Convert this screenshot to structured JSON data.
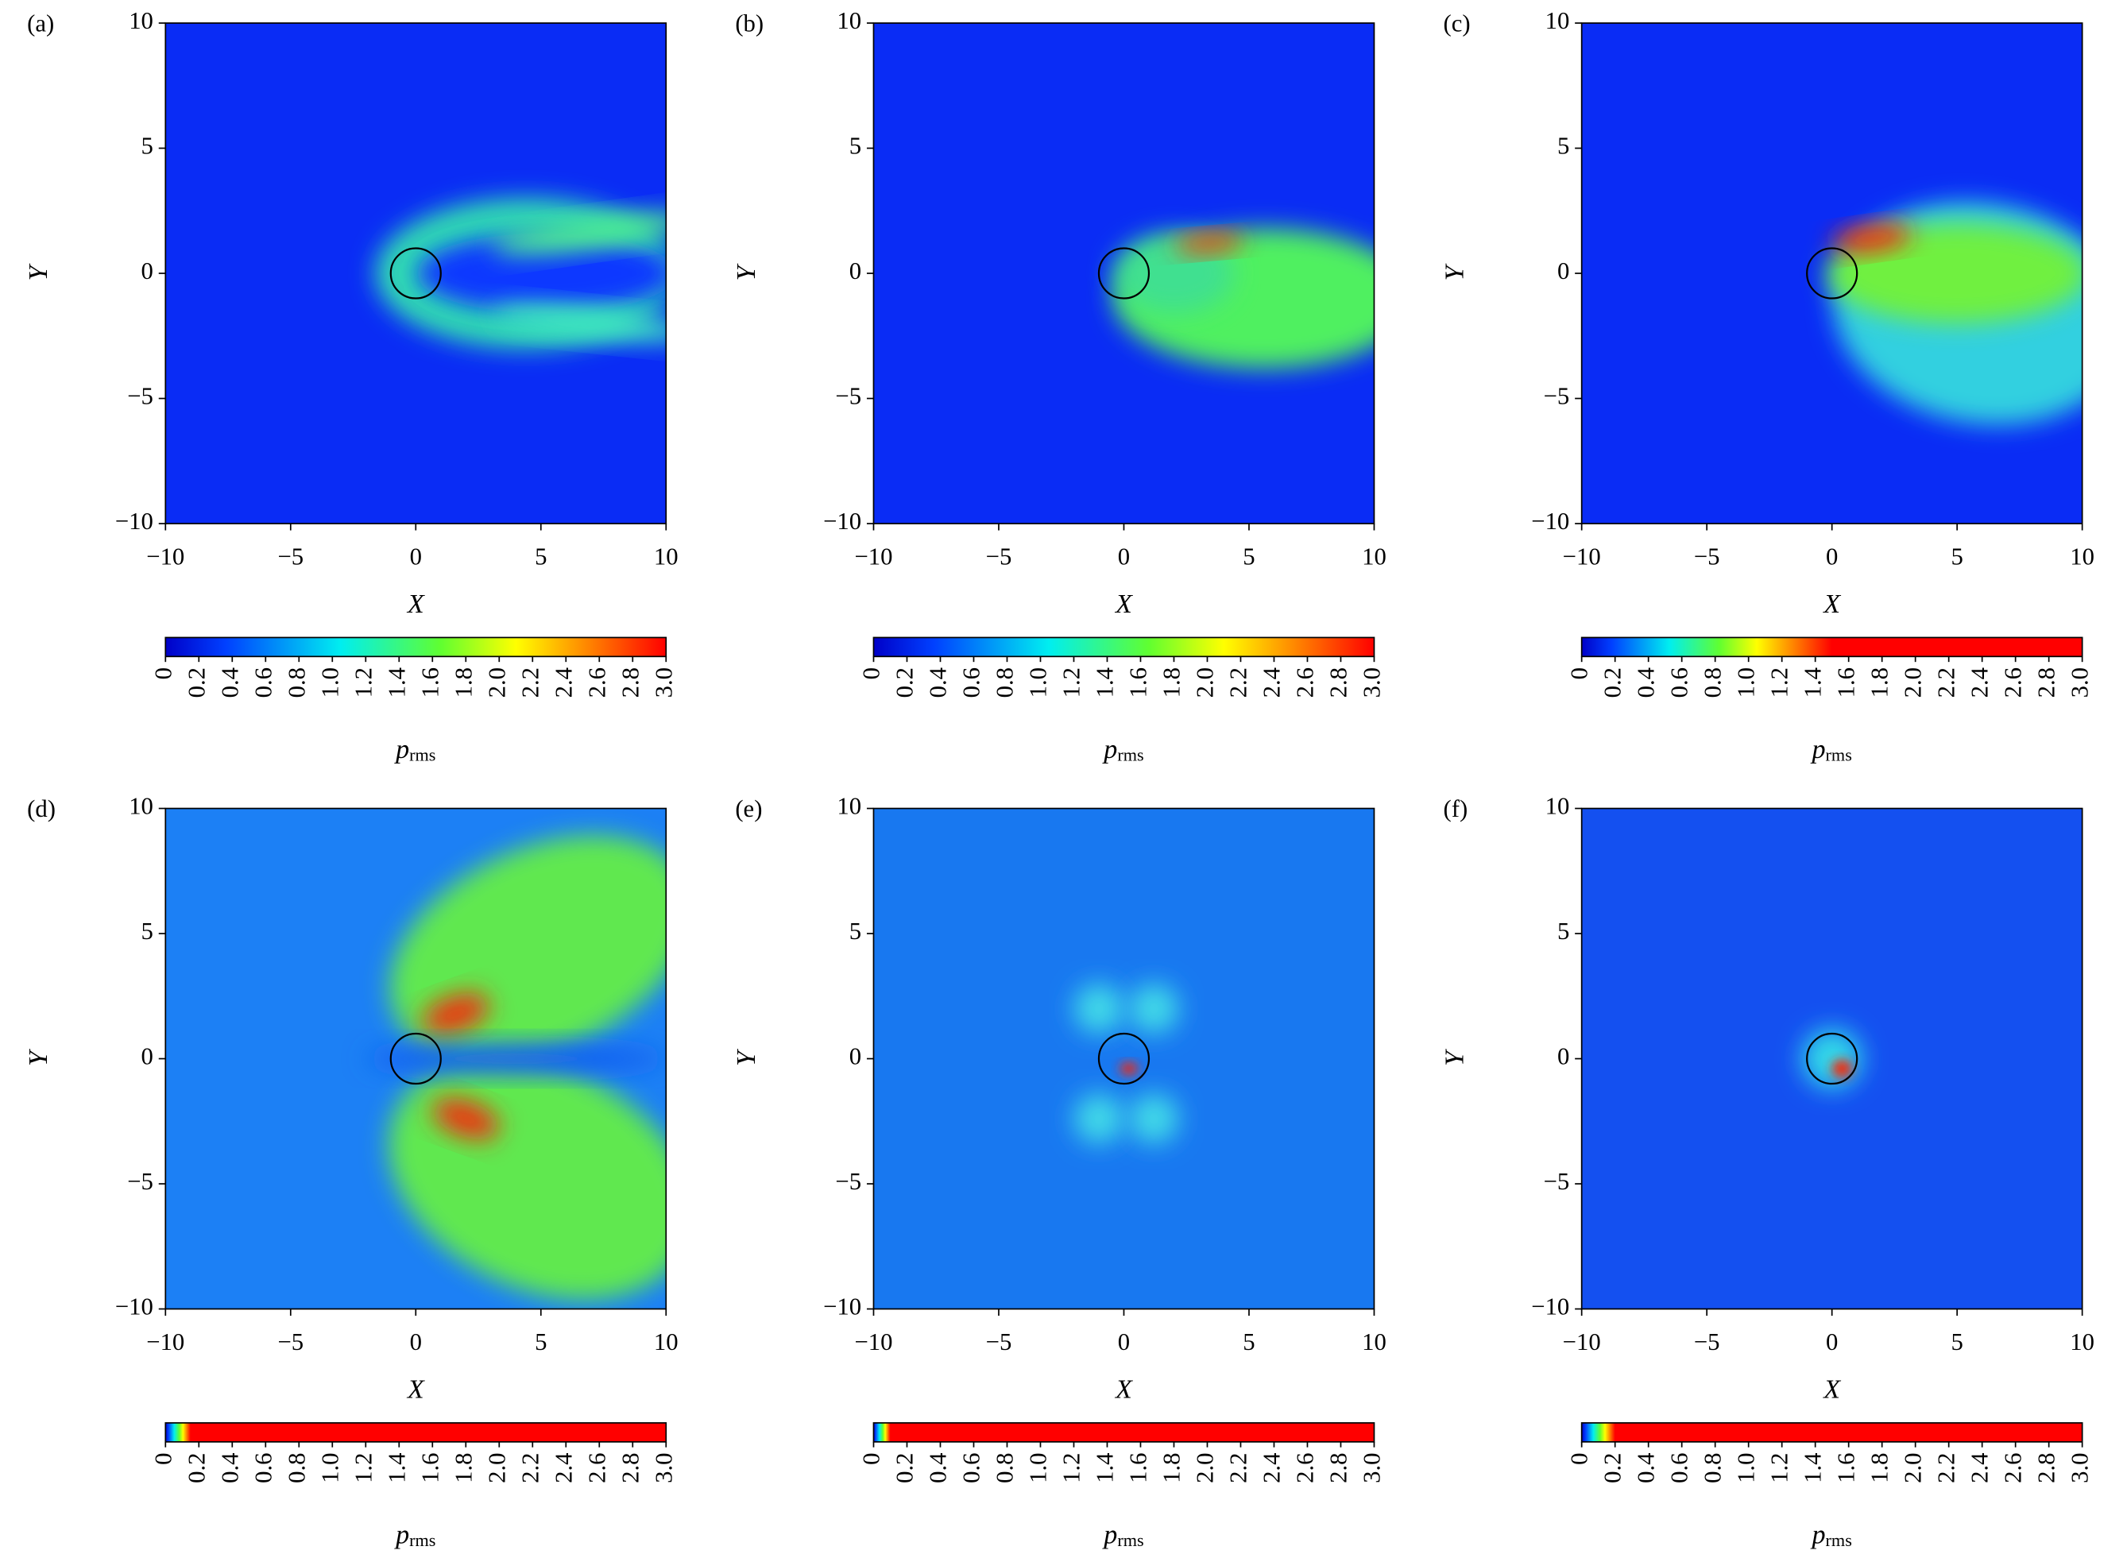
{
  "chart_data": [
    {
      "type": "heatmap",
      "panel_label": "(a)",
      "xlabel": "X",
      "ylabel": "Y",
      "xlim": [
        -10,
        10
      ],
      "ylim": [
        -10,
        10
      ],
      "xticks": [
        {
          "value": -10,
          "label": "−10"
        },
        {
          "value": -5,
          "label": "−5"
        },
        0,
        5,
        10
      ],
      "yticks": [
        {
          "value": -10,
          "label": "−10"
        },
        {
          "value": -5,
          "label": "−5"
        },
        0,
        5,
        10
      ],
      "circle": {
        "center": [
          0,
          0
        ],
        "radius": 1
      },
      "colorbar": {
        "label": "p",
        "label_sub": "rms",
        "colormap": "jet",
        "lim": [
          0,
          3
        ],
        "clim": [
          0,
          3
        ],
        "ticks": [
          0,
          0.2,
          0.4,
          0.6,
          0.8,
          {
            "value": 1,
            "label": "1.0"
          },
          1.2,
          1.4,
          1.6,
          1.8,
          {
            "value": 2,
            "label": "2.0"
          },
          2.2,
          2.4,
          2.6,
          2.8,
          {
            "value": 3,
            "label": "3.0"
          }
        ]
      }
    },
    {
      "type": "heatmap",
      "panel_label": "(b)",
      "xlabel": "X",
      "ylabel": "Y",
      "xlim": [
        -10,
        10
      ],
      "ylim": [
        -10,
        10
      ],
      "xticks": [
        {
          "value": -10,
          "label": "−10"
        },
        {
          "value": -5,
          "label": "−5"
        },
        0,
        5,
        10
      ],
      "yticks": [
        {
          "value": -10,
          "label": "−10"
        },
        {
          "value": -5,
          "label": "−5"
        },
        0,
        5,
        10
      ],
      "circle": {
        "center": [
          0,
          0
        ],
        "radius": 1
      },
      "colorbar": {
        "label": "p",
        "label_sub": "rms",
        "colormap": "jet",
        "lim": [
          0,
          3
        ],
        "clim": [
          0,
          3
        ],
        "ticks": [
          0,
          0.2,
          0.4,
          0.6,
          0.8,
          {
            "value": 1,
            "label": "1.0"
          },
          1.2,
          1.4,
          1.6,
          1.8,
          {
            "value": 2,
            "label": "2.0"
          },
          2.2,
          2.4,
          2.6,
          2.8,
          {
            "value": 3,
            "label": "3.0"
          }
        ]
      }
    },
    {
      "type": "heatmap",
      "panel_label": "(c)",
      "xlabel": "X",
      "ylabel": "Y",
      "xlim": [
        -10,
        10
      ],
      "ylim": [
        -10,
        10
      ],
      "xticks": [
        {
          "value": -10,
          "label": "−10"
        },
        {
          "value": -5,
          "label": "−5"
        },
        0,
        5,
        10
      ],
      "yticks": [
        {
          "value": -10,
          "label": "−10"
        },
        {
          "value": -5,
          "label": "−5"
        },
        0,
        5,
        10
      ],
      "circle": {
        "center": [
          0,
          0
        ],
        "radius": 1
      },
      "colorbar": {
        "label": "p",
        "label_sub": "rms",
        "colormap": "jet",
        "lim": [
          0,
          3
        ],
        "clim": [
          0,
          1.5
        ],
        "ticks": [
          0,
          0.2,
          0.4,
          0.6,
          0.8,
          {
            "value": 1,
            "label": "1.0"
          },
          1.2,
          1.4,
          1.6,
          1.8,
          {
            "value": 2,
            "label": "2.0"
          },
          2.2,
          2.4,
          2.6,
          2.8,
          {
            "value": 3,
            "label": "3.0"
          }
        ]
      }
    },
    {
      "type": "heatmap",
      "panel_label": "(d)",
      "xlabel": "X",
      "ylabel": "Y",
      "xlim": [
        -10,
        10
      ],
      "ylim": [
        -10,
        10
      ],
      "xticks": [
        {
          "value": -10,
          "label": "−10"
        },
        {
          "value": -5,
          "label": "−5"
        },
        0,
        5,
        10
      ],
      "yticks": [
        {
          "value": -10,
          "label": "−10"
        },
        {
          "value": -5,
          "label": "−5"
        },
        0,
        5,
        10
      ],
      "circle": {
        "center": [
          0,
          0
        ],
        "radius": 1
      },
      "colorbar": {
        "label": "p",
        "label_sub": "rms",
        "colormap": "jet",
        "lim": [
          0,
          3
        ],
        "clim": [
          0,
          0.15
        ],
        "ticks": [
          0,
          0.2,
          0.4,
          0.6,
          0.8,
          {
            "value": 1,
            "label": "1.0"
          },
          1.2,
          1.4,
          1.6,
          1.8,
          {
            "value": 2,
            "label": "2.0"
          },
          2.2,
          2.4,
          2.6,
          2.8,
          {
            "value": 3,
            "label": "3.0"
          }
        ]
      }
    },
    {
      "type": "heatmap",
      "panel_label": "(e)",
      "xlabel": "X",
      "ylabel": "Y",
      "xlim": [
        -10,
        10
      ],
      "ylim": [
        -10,
        10
      ],
      "xticks": [
        {
          "value": -10,
          "label": "−10"
        },
        {
          "value": -5,
          "label": "−5"
        },
        0,
        5,
        10
      ],
      "yticks": [
        {
          "value": -10,
          "label": "−10"
        },
        {
          "value": -5,
          "label": "−5"
        },
        0,
        5,
        10
      ],
      "circle": {
        "center": [
          0,
          0
        ],
        "radius": 1
      },
      "colorbar": {
        "label": "p",
        "label_sub": "rms",
        "colormap": "jet",
        "lim": [
          0,
          3
        ],
        "clim": [
          0,
          0.1
        ],
        "ticks": [
          0,
          0.2,
          0.4,
          0.6,
          0.8,
          {
            "value": 1,
            "label": "1.0"
          },
          1.2,
          1.4,
          1.6,
          1.8,
          {
            "value": 2,
            "label": "2.0"
          },
          2.2,
          2.4,
          2.6,
          2.8,
          {
            "value": 3,
            "label": "3.0"
          }
        ]
      }
    },
    {
      "type": "heatmap",
      "panel_label": "(f)",
      "xlabel": "X",
      "ylabel": "Y",
      "xlim": [
        -10,
        10
      ],
      "ylim": [
        -10,
        10
      ],
      "xticks": [
        {
          "value": -10,
          "label": "−10"
        },
        {
          "value": -5,
          "label": "−5"
        },
        0,
        5,
        10
      ],
      "yticks": [
        {
          "value": -10,
          "label": "−10"
        },
        {
          "value": -5,
          "label": "−5"
        },
        0,
        5,
        10
      ],
      "circle": {
        "center": [
          0,
          0
        ],
        "radius": 1
      },
      "colorbar": {
        "label": "p",
        "label_sub": "rms",
        "colormap": "jet",
        "lim": [
          0,
          3
        ],
        "clim": [
          0,
          0.2
        ],
        "ticks": [
          0,
          0.2,
          0.4,
          0.6,
          0.8,
          {
            "value": 1,
            "label": "1.0"
          },
          1.2,
          1.4,
          1.6,
          1.8,
          {
            "value": 2,
            "label": "2.0"
          },
          2.2,
          2.4,
          2.6,
          2.8,
          {
            "value": 3,
            "label": "3.0"
          }
        ]
      }
    }
  ]
}
